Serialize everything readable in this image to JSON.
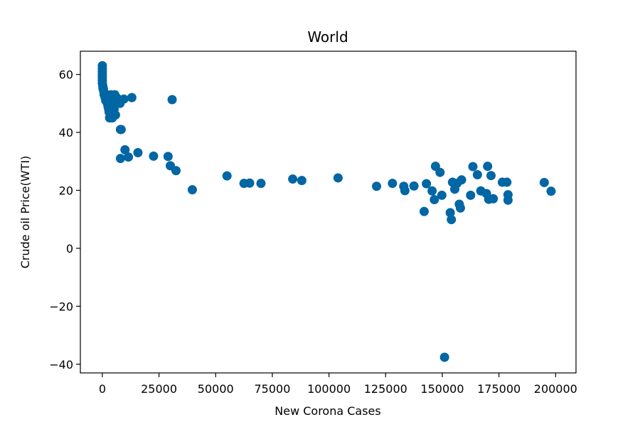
{
  "chart_data": {
    "type": "scatter",
    "title": "World",
    "xlabel": "New Corona Cases",
    "ylabel": "Crude oil Price(WTI)",
    "xlim": [
      -9700,
      209000
    ],
    "ylim": [
      -43,
      68
    ],
    "grid": false,
    "marker_color": "#0066a4",
    "xticks": [
      0,
      25000,
      50000,
      75000,
      100000,
      125000,
      150000,
      175000,
      200000
    ],
    "xtick_labels": [
      "0",
      "25000",
      "50000",
      "75000",
      "100000",
      "125000",
      "150000",
      "175000",
      "200000"
    ],
    "yticks": [
      -40,
      -20,
      0,
      20,
      40,
      60
    ],
    "ytick_labels": [
      "−40",
      "−20",
      "0",
      "20",
      "40",
      "60"
    ],
    "points": [
      {
        "x": 0,
        "y": 63
      },
      {
        "x": 0,
        "y": 62
      },
      {
        "x": 0,
        "y": 61
      },
      {
        "x": 0,
        "y": 60
      },
      {
        "x": 0,
        "y": 59
      },
      {
        "x": 0,
        "y": 58
      },
      {
        "x": 0,
        "y": 57
      },
      {
        "x": 200,
        "y": 56
      },
      {
        "x": 300,
        "y": 55
      },
      {
        "x": 500,
        "y": 55
      },
      {
        "x": 700,
        "y": 54
      },
      {
        "x": 800,
        "y": 53
      },
      {
        "x": 1000,
        "y": 53
      },
      {
        "x": 1200,
        "y": 52
      },
      {
        "x": 1400,
        "y": 52
      },
      {
        "x": 1500,
        "y": 51
      },
      {
        "x": 1700,
        "y": 53
      },
      {
        "x": 2000,
        "y": 52
      },
      {
        "x": 2200,
        "y": 50
      },
      {
        "x": 2400,
        "y": 51
      },
      {
        "x": 2500,
        "y": 49
      },
      {
        "x": 2700,
        "y": 50
      },
      {
        "x": 2800,
        "y": 48
      },
      {
        "x": 3000,
        "y": 47
      },
      {
        "x": 3200,
        "y": 45
      },
      {
        "x": 3400,
        "y": 52
      },
      {
        "x": 3500,
        "y": 51
      },
      {
        "x": 3700,
        "y": 50
      },
      {
        "x": 3800,
        "y": 53
      },
      {
        "x": 4000,
        "y": 49
      },
      {
        "x": 4200,
        "y": 46
      },
      {
        "x": 4400,
        "y": 45
      },
      {
        "x": 4500,
        "y": 47
      },
      {
        "x": 4700,
        "y": 52
      },
      {
        "x": 5000,
        "y": 51
      },
      {
        "x": 5200,
        "y": 48
      },
      {
        "x": 5500,
        "y": 53
      },
      {
        "x": 5800,
        "y": 46
      },
      {
        "x": 6000,
        "y": 51
      },
      {
        "x": 6300,
        "y": 52
      },
      {
        "x": 7800,
        "y": 50
      },
      {
        "x": 8000,
        "y": 41
      },
      {
        "x": 8300,
        "y": 41
      },
      {
        "x": 8000,
        "y": 31
      },
      {
        "x": 9500,
        "y": 51.5
      },
      {
        "x": 10000,
        "y": 34
      },
      {
        "x": 11500,
        "y": 31.5
      },
      {
        "x": 13000,
        "y": 52
      },
      {
        "x": 15700,
        "y": 33
      },
      {
        "x": 22600,
        "y": 31.8
      },
      {
        "x": 29000,
        "y": 31.7
      },
      {
        "x": 30000,
        "y": 28.5
      },
      {
        "x": 30800,
        "y": 51.3
      },
      {
        "x": 32500,
        "y": 26.8
      },
      {
        "x": 39700,
        "y": 20.2
      },
      {
        "x": 55000,
        "y": 25
      },
      {
        "x": 62500,
        "y": 22.4
      },
      {
        "x": 65000,
        "y": 22.5
      },
      {
        "x": 70000,
        "y": 22.4
      },
      {
        "x": 84000,
        "y": 23.9
      },
      {
        "x": 88000,
        "y": 23.4
      },
      {
        "x": 104000,
        "y": 24.3
      },
      {
        "x": 121000,
        "y": 21.4
      },
      {
        "x": 128000,
        "y": 22.4
      },
      {
        "x": 133000,
        "y": 21.4
      },
      {
        "x": 133500,
        "y": 19.9
      },
      {
        "x": 137500,
        "y": 21.5
      },
      {
        "x": 142000,
        "y": 12.7
      },
      {
        "x": 143000,
        "y": 22.3
      },
      {
        "x": 145500,
        "y": 19.8
      },
      {
        "x": 146500,
        "y": 16.8
      },
      {
        "x": 147000,
        "y": 28.3
      },
      {
        "x": 149000,
        "y": 26.2
      },
      {
        "x": 149800,
        "y": 18.3
      },
      {
        "x": 151000,
        "y": -37.6
      },
      {
        "x": 153500,
        "y": 12.3
      },
      {
        "x": 154000,
        "y": 9.9
      },
      {
        "x": 154500,
        "y": 22.8
      },
      {
        "x": 155500,
        "y": 20.4
      },
      {
        "x": 156500,
        "y": 22.4
      },
      {
        "x": 157500,
        "y": 15.2
      },
      {
        "x": 158000,
        "y": 13.9
      },
      {
        "x": 158500,
        "y": 23.6
      },
      {
        "x": 162500,
        "y": 18.3
      },
      {
        "x": 163500,
        "y": 28.2
      },
      {
        "x": 165500,
        "y": 25.4
      },
      {
        "x": 167000,
        "y": 19.8
      },
      {
        "x": 169500,
        "y": 18.9
      },
      {
        "x": 170000,
        "y": 28.3
      },
      {
        "x": 170500,
        "y": 16.9
      },
      {
        "x": 171500,
        "y": 25.1
      },
      {
        "x": 172500,
        "y": 17.1
      },
      {
        "x": 176500,
        "y": 22.8
      },
      {
        "x": 178500,
        "y": 22.8
      },
      {
        "x": 179000,
        "y": 18.5
      },
      {
        "x": 179000,
        "y": 16.6
      },
      {
        "x": 195000,
        "y": 22.7
      },
      {
        "x": 198000,
        "y": 19.7
      }
    ]
  }
}
